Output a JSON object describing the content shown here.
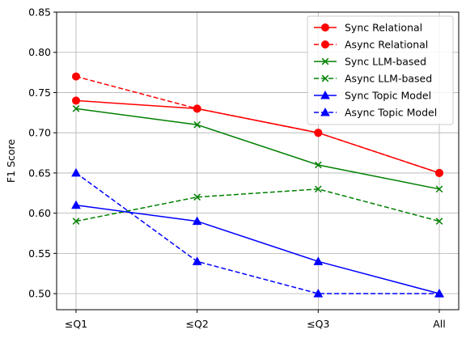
{
  "chart_data": {
    "type": "line",
    "title": "",
    "xlabel": "",
    "ylabel": "F1 Score",
    "categories": [
      "≤Q1",
      "≤Q2",
      "≤Q3",
      "All"
    ],
    "ylim": [
      0.48,
      0.85
    ],
    "yticks": [
      "0.50",
      "0.55",
      "0.60",
      "0.65",
      "0.70",
      "0.75",
      "0.80",
      "0.85"
    ],
    "grid": true,
    "legend_position": "top-right",
    "series": [
      {
        "name": "Sync Relational",
        "values": [
          0.74,
          0.73,
          0.7,
          0.65
        ],
        "color": "#ff0000",
        "dashed": false,
        "marker": "circle"
      },
      {
        "name": "Async Relational",
        "values": [
          0.77,
          0.73,
          0.7,
          0.65
        ],
        "color": "#ff0000",
        "dashed": true,
        "marker": "circle"
      },
      {
        "name": "Sync LLM-based",
        "values": [
          0.73,
          0.71,
          0.66,
          0.63
        ],
        "color": "#008000",
        "dashed": false,
        "marker": "x"
      },
      {
        "name": "Async LLM-based",
        "values": [
          0.59,
          0.62,
          0.63,
          0.59
        ],
        "color": "#008000",
        "dashed": true,
        "marker": "x"
      },
      {
        "name": "Sync Topic Model",
        "values": [
          0.61,
          0.59,
          0.54,
          0.5
        ],
        "color": "#0000ff",
        "dashed": false,
        "marker": "triangle"
      },
      {
        "name": "Async Topic Model",
        "values": [
          0.65,
          0.54,
          0.5,
          0.5
        ],
        "color": "#0000ff",
        "dashed": true,
        "marker": "triangle"
      }
    ]
  }
}
